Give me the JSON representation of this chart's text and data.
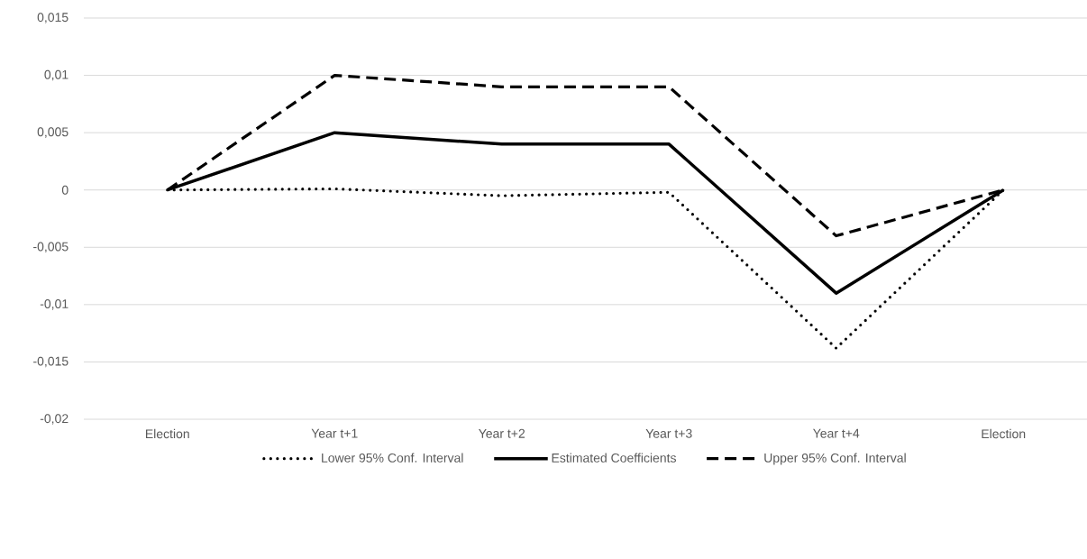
{
  "chart_data": {
    "type": "line",
    "categories": [
      "Election",
      "Year t+1",
      "Year t+2",
      "Year t+3",
      "Year t+4",
      "Election"
    ],
    "series": [
      {
        "name": "Lower 95% Conf. Interval",
        "color": "#000000",
        "line_style": "dotted",
        "values": [
          0,
          0.0001,
          -0.0005,
          -0.0002,
          -0.0138,
          0
        ]
      },
      {
        "name": "Estimated Coefficients",
        "color": "#000000",
        "line_style": "solid",
        "values": [
          0,
          0.005,
          0.004,
          0.004,
          -0.009,
          0
        ]
      },
      {
        "name": "Upper 95% Conf. Interval",
        "color": "#000000",
        "line_style": "dashed",
        "values": [
          0,
          0.01,
          0.009,
          0.009,
          -0.004,
          0
        ]
      }
    ],
    "ylim": [
      -0.02,
      0.015
    ],
    "yticks": [
      {
        "value": -0.02,
        "label": "-0,02"
      },
      {
        "value": -0.015,
        "label": "-0,015"
      },
      {
        "value": -0.01,
        "label": "-0,01"
      },
      {
        "value": -0.005,
        "label": "-0,005"
      },
      0,
      {
        "value": 0.005,
        "label": "0,005"
      },
      {
        "value": 0.01,
        "label": "0,01"
      },
      {
        "value": 0.015,
        "label": "0,015"
      }
    ],
    "grid": "y",
    "legend": "bottom"
  }
}
